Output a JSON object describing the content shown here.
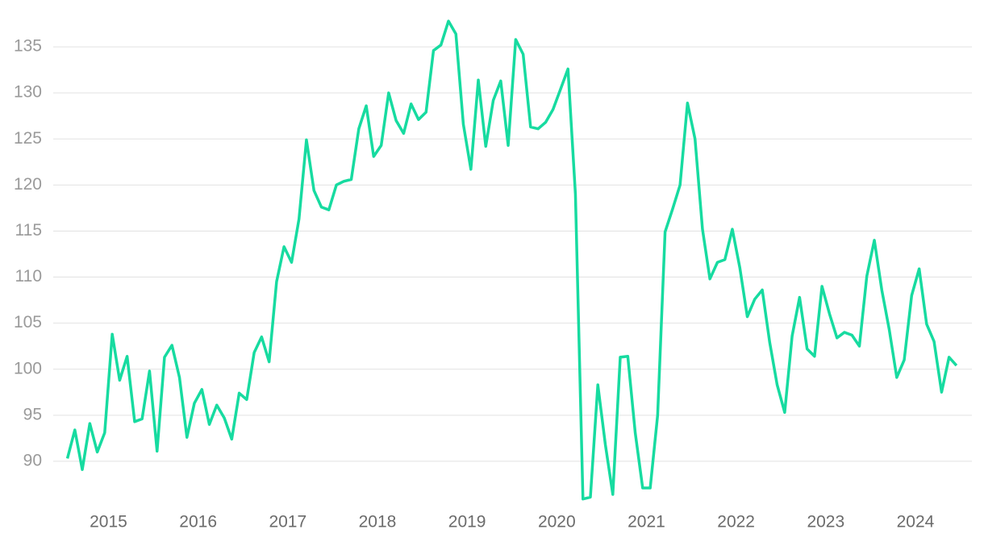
{
  "chart_data": {
    "type": "line",
    "x": [
      2014.542,
      2014.625,
      2014.708,
      2014.792,
      2014.875,
      2014.958,
      2015.042,
      2015.125,
      2015.208,
      2015.292,
      2015.375,
      2015.458,
      2015.542,
      2015.625,
      2015.708,
      2015.792,
      2015.875,
      2015.958,
      2016.042,
      2016.125,
      2016.208,
      2016.292,
      2016.375,
      2016.458,
      2016.542,
      2016.625,
      2016.708,
      2016.792,
      2016.875,
      2016.958,
      2017.042,
      2017.125,
      2017.208,
      2017.292,
      2017.375,
      2017.458,
      2017.542,
      2017.625,
      2017.708,
      2017.792,
      2017.875,
      2017.958,
      2018.042,
      2018.125,
      2018.208,
      2018.292,
      2018.375,
      2018.458,
      2018.542,
      2018.625,
      2018.708,
      2018.792,
      2018.875,
      2018.958,
      2019.042,
      2019.125,
      2019.208,
      2019.292,
      2019.375,
      2019.458,
      2019.542,
      2019.625,
      2019.708,
      2019.792,
      2019.875,
      2019.958,
      2020.042,
      2020.125,
      2020.208,
      2020.292,
      2020.375,
      2020.458,
      2020.542,
      2020.625,
      2020.708,
      2020.792,
      2020.875,
      2020.958,
      2021.042,
      2021.125,
      2021.208,
      2021.292,
      2021.375,
      2021.458,
      2021.542,
      2021.625,
      2021.708,
      2021.792,
      2021.875,
      2021.958,
      2022.042,
      2022.125,
      2022.208,
      2022.292,
      2022.375,
      2022.458,
      2022.542,
      2022.625,
      2022.708,
      2022.792,
      2022.875,
      2022.958,
      2023.042,
      2023.125,
      2023.208,
      2023.292,
      2023.375,
      2023.458,
      2023.542,
      2023.625,
      2023.708,
      2023.792,
      2023.875,
      2023.958,
      2024.042,
      2024.125,
      2024.208,
      2024.292,
      2024.375,
      2024.458
    ],
    "series": [
      {
        "color": "#17dba0",
        "values": [
          90.3,
          93.4,
          89.1,
          94.1,
          91.0,
          93.1,
          103.8,
          98.8,
          101.4,
          94.3,
          94.6,
          99.8,
          91.1,
          101.3,
          102.6,
          99.1,
          92.6,
          96.3,
          97.8,
          94.0,
          96.1,
          94.7,
          92.4,
          97.4,
          96.7,
          101.8,
          103.5,
          100.8,
          109.5,
          113.3,
          111.6,
          116.3,
          124.9,
          119.4,
          117.6,
          117.3,
          120.0,
          120.4,
          120.6,
          126.1,
          128.6,
          123.1,
          124.3,
          130.0,
          127.0,
          125.6,
          128.8,
          127.1,
          127.9,
          134.6,
          135.2,
          137.8,
          136.4,
          126.6,
          121.7,
          131.4,
          124.2,
          129.2,
          131.3,
          124.3,
          135.8,
          134.2,
          126.3,
          126.1,
          126.8,
          128.2,
          130.4,
          132.6,
          119.0,
          85.9,
          86.1,
          98.3,
          91.8,
          86.4,
          101.3,
          101.4,
          93.1,
          87.1,
          87.1,
          95.0,
          114.9,
          117.4,
          120.0,
          128.9,
          125.0,
          115.2,
          109.8,
          111.6,
          111.9,
          115.2,
          111.0,
          105.7,
          107.6,
          108.6,
          102.9,
          98.3,
          95.3,
          103.6,
          107.8,
          102.2,
          101.4,
          109.0,
          106.0,
          103.4,
          104.0,
          103.7,
          102.5,
          110.1,
          114.0,
          108.6,
          104.3,
          99.1,
          101.0,
          108.0,
          110.9,
          104.9,
          103.0,
          97.5,
          101.3,
          100.4
        ]
      }
    ],
    "xlim": [
      2014.42,
      2024.63
    ],
    "xticks": [
      2015,
      2016,
      2017,
      2018,
      2019,
      2020,
      2021,
      2022,
      2023,
      2024
    ],
    "ylim": [
      85,
      140
    ],
    "yticks": [
      90,
      95,
      100,
      105,
      110,
      115,
      120,
      125,
      130,
      135
    ],
    "grid": true
  }
}
